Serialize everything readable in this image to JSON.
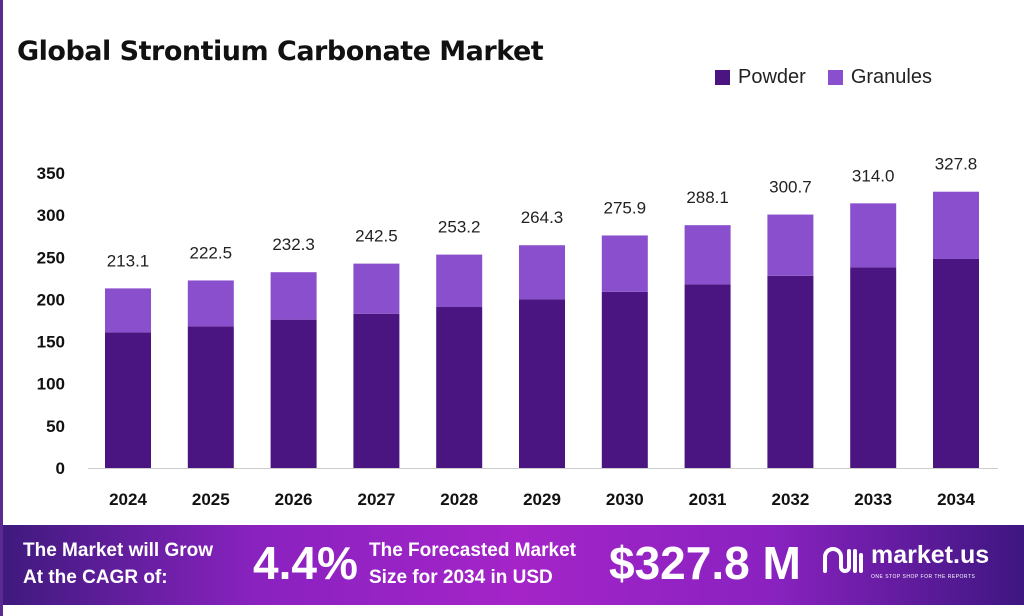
{
  "chart_data": {
    "type": "bar",
    "stacked": true,
    "title": "Global Strontium Carbonate Market",
    "categories": [
      "2024",
      "2025",
      "2026",
      "2027",
      "2028",
      "2029",
      "2030",
      "2031",
      "2032",
      "2033",
      "2034"
    ],
    "series": [
      {
        "name": "Powder",
        "color": "#4a1580",
        "values": [
          161,
          168,
          176,
          183,
          191,
          200,
          209,
          218,
          228,
          238,
          248
        ]
      },
      {
        "name": "Granules",
        "color": "#8a4fcc",
        "values": [
          52.1,
          54.5,
          56.3,
          59.5,
          62.2,
          64.3,
          66.9,
          70.1,
          72.7,
          76.0,
          79.8
        ]
      }
    ],
    "totals": [
      "213.1",
      "222.5",
      "232.3",
      "242.5",
      "253.2",
      "264.3",
      "275.9",
      "288.1",
      "300.7",
      "314.0",
      "327.8"
    ],
    "yticks": [
      "0",
      "50",
      "100",
      "150",
      "200",
      "250",
      "300",
      "350"
    ],
    "ylim": [
      0,
      350
    ],
    "grid": false,
    "legend_position": "top-right"
  },
  "banner": {
    "cagr_text_1": "The Market will Grow",
    "cagr_text_2": "At the CAGR of:",
    "cagr_value": "4.4%",
    "forecast_text_1": "The Forecasted Market",
    "forecast_text_2": "Size for 2034 in USD",
    "forecast_value": "$327.8 M",
    "logo_name": "market.us",
    "logo_tagline": "ONE STOP SHOP FOR THE REPORTS"
  }
}
